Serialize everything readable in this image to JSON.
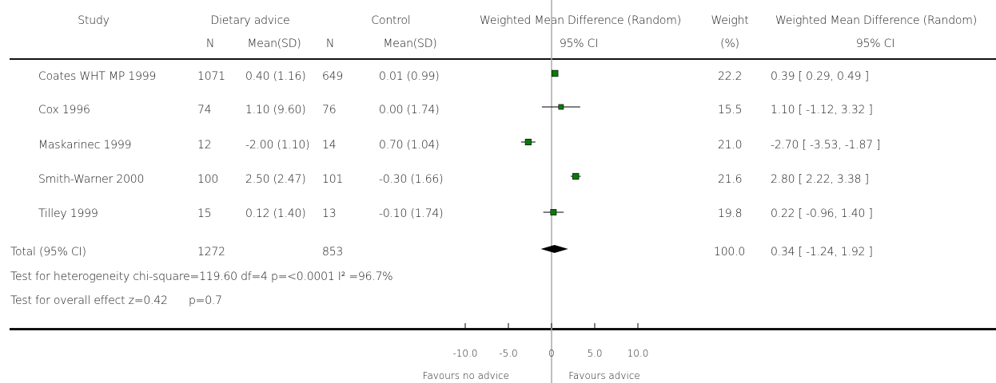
{
  "header": {
    "study": "Study",
    "group1": "Dietary advice",
    "group2": "Control",
    "wmd": "Weighted Mean Difference (Random)",
    "weight": "Weight",
    "wmd2": "Weighted Mean Difference (Random)",
    "n1": "N",
    "mean1": "Mean(SD)",
    "n2": "N",
    "mean2": "Mean(SD)",
    "ci": "95% CI",
    "pct": "(%)",
    "ci2": "95% CI"
  },
  "rows": [
    {
      "study": "Coates WHT MP 1999",
      "n1": "1071",
      "m1": "0.40 (1.16)",
      "n2": "649",
      "m2": "0.01 (0.99)",
      "weight": "22.2",
      "ci": "0.39 [ 0.29, 0.49 ]"
    },
    {
      "study": "Cox 1996",
      "n1": "74",
      "m1": "1.10 (9.60)",
      "n2": "76",
      "m2": "0.00 (1.74)",
      "weight": "15.5",
      "ci": "1.10 [ -1.12, 3.32 ]"
    },
    {
      "study": "Maskarinec 1999",
      "n1": "12",
      "m1": "-2.00 (1.10)",
      "n2": "14",
      "m2": "0.70 (1.04)",
      "weight": "21.0",
      "ci": "-2.70 [ -3.53, -1.87 ]"
    },
    {
      "study": "Smith-Warner 2000",
      "n1": "100",
      "m1": "2.50 (2.47)",
      "n2": "101",
      "m2": "-0.30 (1.66)",
      "weight": "21.6",
      "ci": "2.80 [ 2.22, 3.38 ]"
    },
    {
      "study": "Tilley 1999",
      "n1": "15",
      "m1": "0.12 (1.40)",
      "n2": "13",
      "m2": "-0.10 (1.74)",
      "weight": "19.8",
      "ci": "0.22 [ -0.96, 1.40 ]"
    }
  ],
  "total": {
    "label": "Total (95% CI)",
    "n1": "1272",
    "n2": "853",
    "weight": "100.0",
    "ci": "0.34 [ -1.24, 1.92 ]"
  },
  "heterogeneity": "Test for heterogeneity chi-square=119.60 df=4 p=<0.0001 I² =96.7%",
  "overall": "Test for overall effect z=0.42",
  "overall_p": "p=0.7",
  "axis": {
    "ticks": [
      "-10.0",
      "-5.0",
      "0",
      "5.0",
      "10.0"
    ],
    "left_label": "Favours no advice",
    "right_label": "Favours advice"
  },
  "colors": {
    "marker": "#0a7a0a",
    "diamond": "#000000",
    "line": "#000000",
    "zero_line": "#aaaaaa"
  },
  "chart_data": {
    "type": "forest",
    "scale": "linear",
    "xlim": [
      -10,
      10
    ],
    "xticks": [
      -10,
      -5,
      0,
      5,
      10
    ],
    "studies": [
      {
        "label": "Coates WHT MP 1999",
        "estimate": 0.39,
        "lower": 0.29,
        "upper": 0.49,
        "weight": 22.2
      },
      {
        "label": "Cox 1996",
        "estimate": 1.1,
        "lower": -1.12,
        "upper": 3.32,
        "weight": 15.5
      },
      {
        "label": "Maskarinec 1999",
        "estimate": -2.7,
        "lower": -3.53,
        "upper": -1.87,
        "weight": 21.0
      },
      {
        "label": "Smith-Warner 2000",
        "estimate": 2.8,
        "lower": 2.22,
        "upper": 3.38,
        "weight": 21.6
      },
      {
        "label": "Tilley 1999",
        "estimate": 0.22,
        "lower": -0.96,
        "upper": 1.4,
        "weight": 19.8
      }
    ],
    "pooled": {
      "label": "Total (95% CI)",
      "estimate": 0.34,
      "lower": -1.24,
      "upper": 1.92
    }
  }
}
